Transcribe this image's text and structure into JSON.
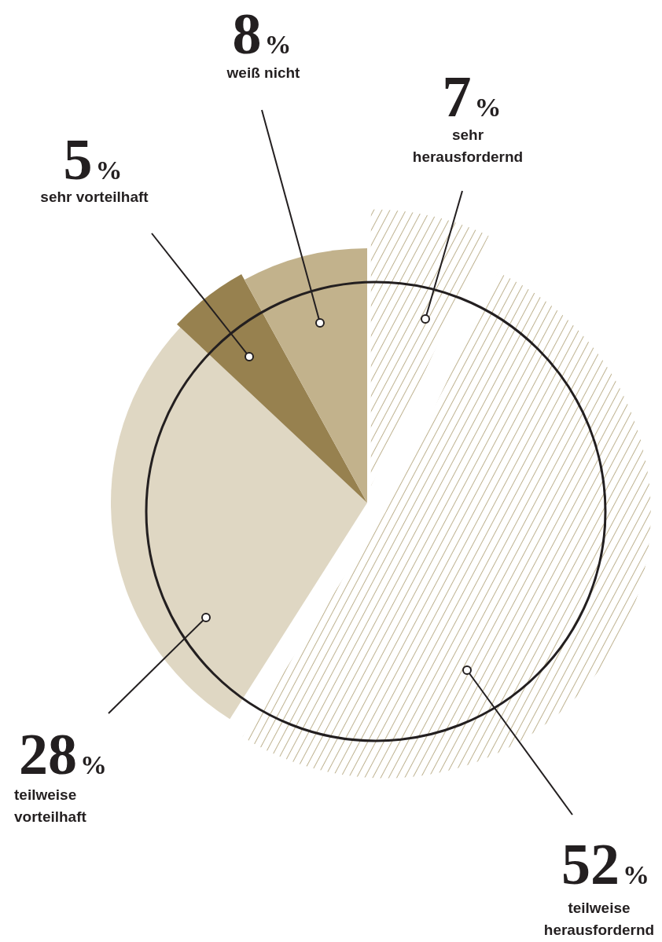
{
  "chart_data": {
    "type": "pie",
    "categories": [
      "sehr herausfordernd",
      "teilweise herausfordernd",
      "teilweise vorteilhaft",
      "sehr vorteilhaft",
      "weiß nicht"
    ],
    "values": [
      7,
      52,
      28,
      5,
      8
    ],
    "colors": [
      "#9c8a55",
      "#9c8a55",
      "#dfd7c3",
      "#97814f",
      "#c2b28c"
    ],
    "value_labels": [
      "7%",
      "52%",
      "28%",
      "5%",
      "8%"
    ]
  }
}
